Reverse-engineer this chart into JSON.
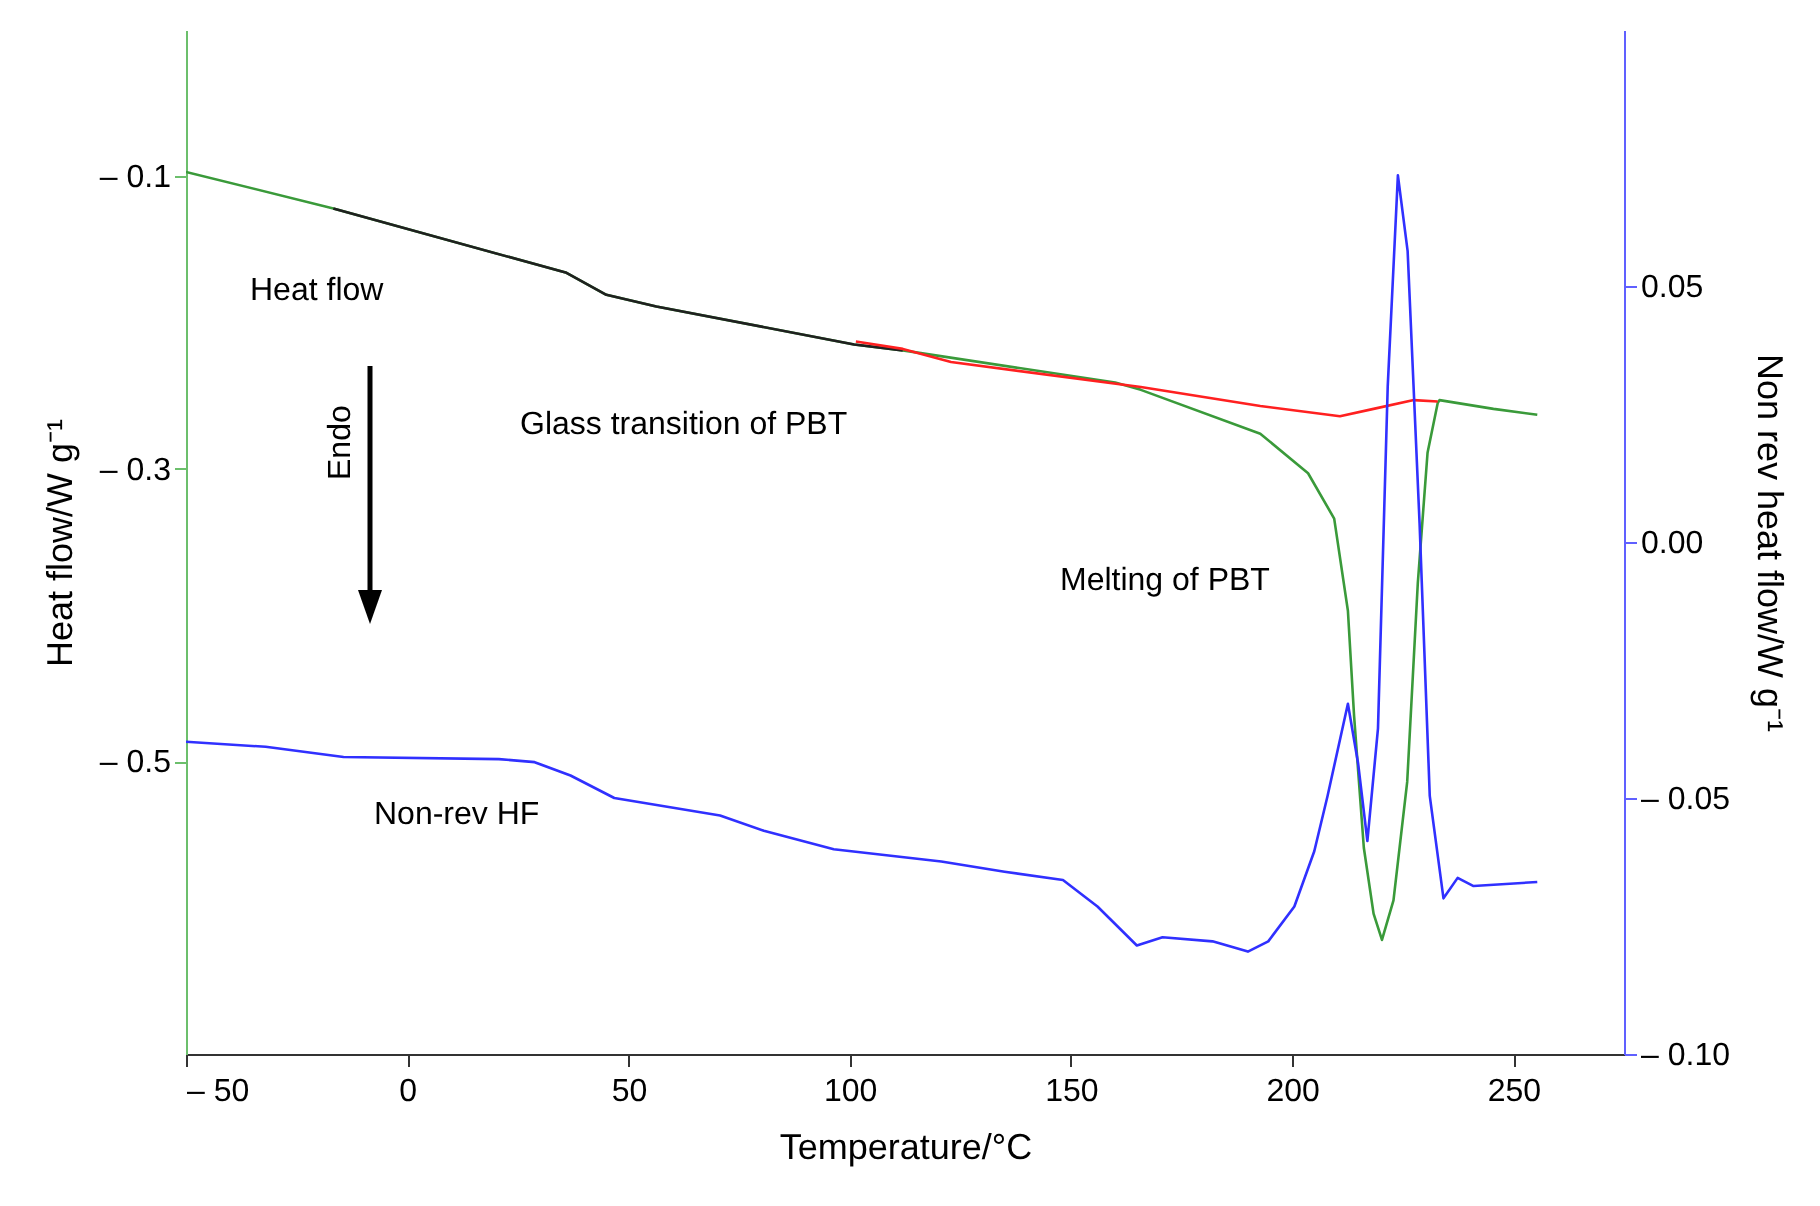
{
  "chart_data": {
    "type": "line",
    "xlabel": "Temperature/°C",
    "ylabel": "Heat flow/W g⁻¹",
    "y2label": "Non rev heat flow/W g⁻¹",
    "xlim": [
      -50,
      275
    ],
    "xticks": [
      {
        "value": -50,
        "label": "– 50"
      },
      0,
      50,
      100,
      150,
      200,
      250
    ],
    "ylim": [
      -0.7,
      0
    ],
    "yticks": [
      {
        "value": -0.1,
        "label": "– 0.1"
      },
      {
        "value": -0.3,
        "label": "– 0.3"
      },
      {
        "value": -0.5,
        "label": "– 0.5"
      }
    ],
    "y2lim": [
      -0.1,
      0.1
    ],
    "y2ticks": [
      {
        "value": -0.1,
        "label": "– 0.10"
      },
      {
        "value": -0.05,
        "label": "– 0.05"
      },
      {
        "value": 0,
        "label": "0.00"
      },
      {
        "value": 0.05,
        "label": "0.05"
      }
    ],
    "annotations": [
      "Heat flow",
      "Endo",
      "Glass transition of PBT",
      "Melting of PBT",
      "Non-rev HF"
    ],
    "series": [
      {
        "color": "#3a9a3a",
        "x": [
          -50,
          -16.7,
          36,
          45,
          56.3,
          101,
          112,
          160,
          165.8,
          192.8,
          203.6,
          209.5,
          212.6,
          214,
          216.2,
          218.4,
          220.3,
          222.9,
          226,
          228.4,
          230.6,
          232.9,
          233.3,
          245.5,
          255.4
        ],
        "values": [
          -0.097,
          -0.122,
          -0.166,
          -0.181,
          -0.189,
          -0.215,
          -0.219,
          -0.241,
          -0.246,
          -0.276,
          -0.303,
          -0.334,
          -0.397,
          -0.469,
          -0.559,
          -0.604,
          -0.622,
          -0.595,
          -0.514,
          -0.378,
          -0.289,
          -0.255,
          -0.253,
          -0.259,
          -0.263
        ]
      },
      {
        "color": "#202020",
        "x": [
          -16.7,
          36,
          45,
          56.3,
          101,
          112
        ],
        "values": [
          -0.122,
          -0.166,
          -0.181,
          -0.189,
          -0.215,
          -0.219
        ]
      },
      {
        "color": "#ff2020",
        "x": [
          101.4,
          112,
          122.9,
          165.8,
          192.8,
          210.8,
          218.4,
          227.5,
          232.9
        ],
        "values": [
          -0.213,
          -0.218,
          -0.227,
          -0.244,
          -0.257,
          -0.264,
          -0.259,
          -0.253,
          -0.254
        ]
      },
      {
        "color": "#3030ff",
        "axis": "y2",
        "x": [
          -50,
          -32,
          -14.4,
          20.7,
          28.8,
          36.9,
          46.8,
          70.7,
          80.6,
          96.4,
          120.7,
          135,
          148.2,
          156,
          164.9,
          170.7,
          182,
          190,
          194.6,
          200.5,
          205,
          208,
          212.6,
          214.9,
          217,
          219.4,
          221.6,
          223.9,
          226.1,
          228.8,
          231.1,
          234.2,
          237.4,
          241,
          255.4
        ],
        "values": [
          -0.039,
          -0.04,
          -0.042,
          -0.0424,
          -0.043,
          -0.0456,
          -0.05,
          -0.0534,
          -0.0564,
          -0.06,
          -0.0624,
          -0.0644,
          -0.066,
          -0.0712,
          -0.0788,
          -0.0772,
          -0.078,
          -0.08,
          -0.078,
          -0.0712,
          -0.0604,
          -0.0496,
          -0.0316,
          -0.0432,
          -0.0584,
          -0.0364,
          0.0304,
          0.0716,
          0.0568,
          0.0036,
          -0.0496,
          -0.0696,
          -0.0656,
          -0.0672,
          -0.0664
        ]
      }
    ]
  }
}
